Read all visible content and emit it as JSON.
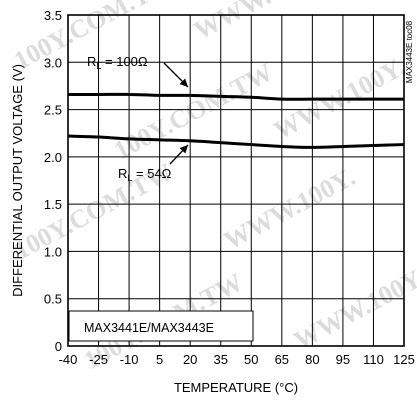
{
  "chart_data": {
    "type": "line",
    "xlabel": "TEMPERATURE (°C)",
    "ylabel": "DIFFERENTIAL OUTPUT VOLTAGE (V)",
    "xlim": [
      -40,
      125
    ],
    "ylim": [
      0,
      3.5
    ],
    "x_ticks": [
      -40,
      -25,
      -10,
      5,
      20,
      35,
      50,
      65,
      80,
      95,
      110,
      125
    ],
    "y_ticks": [
      0,
      0.5,
      1.0,
      1.5,
      2.0,
      2.5,
      3.0,
      3.5
    ],
    "y_tick_labels": [
      "0",
      "0.5",
      "1.0",
      "1.5",
      "2.0",
      "2.5",
      "3.0",
      "3.5"
    ],
    "grid": true,
    "note": "MAX3441E/MAX3443E",
    "code": "MAX3443E toc08",
    "series": [
      {
        "name": "RL = 100Ω",
        "x": [
          -40,
          -25,
          -10,
          5,
          20,
          35,
          50,
          65,
          80,
          95,
          110,
          125
        ],
        "y": [
          2.66,
          2.66,
          2.66,
          2.65,
          2.65,
          2.64,
          2.63,
          2.61,
          2.61,
          2.61,
          2.61,
          2.61
        ]
      },
      {
        "name": "RL = 54Ω",
        "x": [
          -40,
          -25,
          -10,
          5,
          20,
          35,
          50,
          65,
          80,
          95,
          110,
          125
        ],
        "y": [
          2.22,
          2.21,
          2.19,
          2.18,
          2.17,
          2.15,
          2.13,
          2.11,
          2.1,
          2.11,
          2.12,
          2.13
        ]
      }
    ],
    "annotations": [
      {
        "sub": "L",
        "rest": " = 100Ω",
        "series": 0
      },
      {
        "sub": "L",
        "rest": " = 54Ω",
        "series": 1
      }
    ],
    "watermark": [
      "100Y.COM.TW",
      "WWW.100Y."
    ]
  }
}
